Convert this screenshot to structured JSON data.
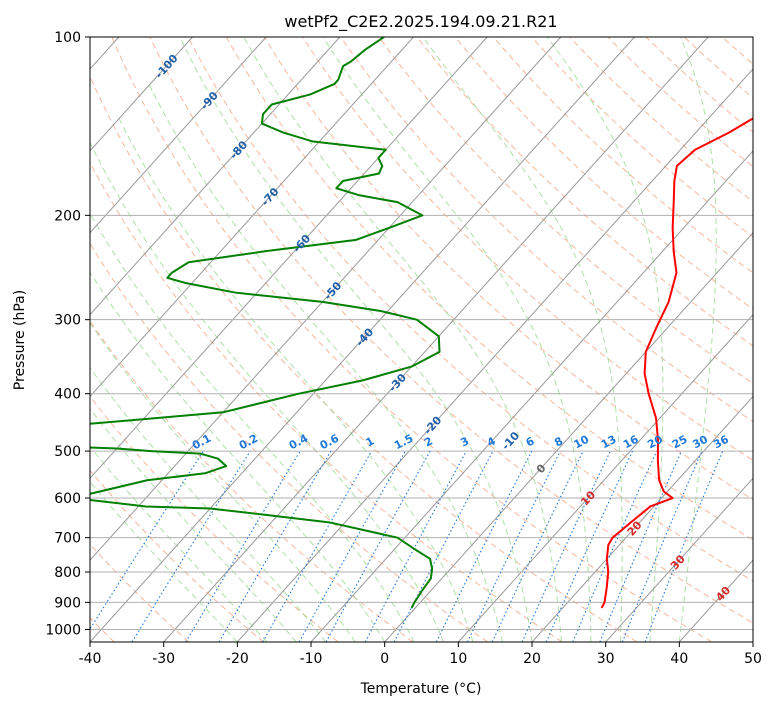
{
  "chart_data": {
    "type": "line",
    "subtype": "skew-t log-p diagram",
    "title": "wetPf2_C2E2.2025.194.09.21.R21",
    "xlabel": "Temperature (°C)",
    "ylabel": "Pressure (hPa)",
    "xlim": [
      -40,
      50
    ],
    "ylim": [
      1050,
      100
    ],
    "y_scale": "log",
    "grid": true,
    "x_ticks": [
      -40,
      -30,
      -20,
      -10,
      0,
      10,
      20,
      30,
      40,
      50
    ],
    "y_ticks": [
      100,
      200,
      300,
      400,
      500,
      600,
      700,
      800,
      900,
      1000
    ],
    "series": [
      {
        "color": "#ff0000",
        "pressure": [
          920,
          900,
          850,
          800,
          760,
          720,
          700,
          660,
          620,
          600,
          585,
          560,
          520,
          480,
          440,
          400,
          370,
          340,
          310,
          280,
          250,
          230,
          210,
          190,
          175,
          165,
          155,
          145,
          135,
          125,
          118,
          112,
          106,
          100
        ],
        "temperature": [
          25.3,
          25.0,
          23.5,
          21.8,
          20.0,
          18.5,
          18.2,
          18.8,
          19.5,
          21.5,
          19.5,
          17.5,
          15.0,
          12.5,
          9.5,
          5.5,
          2.5,
          0.0,
          -1.5,
          -3.0,
          -5.5,
          -8.5,
          -11.5,
          -14.5,
          -17.0,
          -18.5,
          -18.0,
          -15.5,
          -13.5,
          -12.5,
          -11.5,
          -11.5,
          -10.0,
          -8.5
        ]
      },
      {
        "color": "#008000",
        "pressure": [
          920,
          900,
          860,
          820,
          790,
          760,
          730,
          700,
          660,
          640,
          625,
          620,
          600,
          560,
          545,
          530,
          515,
          505,
          500,
          495,
          490,
          470,
          460,
          455,
          450,
          430,
          400,
          380,
          360,
          340,
          320,
          300,
          290,
          280,
          270,
          260,
          255,
          250,
          240,
          230,
          220,
          210,
          200,
          190,
          185,
          180,
          175,
          170,
          165,
          160,
          155,
          150,
          145,
          140,
          135,
          130,
          125,
          120,
          118,
          115,
          112,
          110,
          105,
          100
        ],
        "temperature": [
          -0.5,
          -0.8,
          -1.2,
          -1.5,
          -2.5,
          -4.0,
          -7.5,
          -11.0,
          -22.0,
          -32.0,
          -40.0,
          -49.0,
          -60.0,
          -52.0,
          -45.0,
          -43.0,
          -45.0,
          -48.0,
          -55.0,
          -60.0,
          -70.0,
          -70.0,
          -70.0,
          -70.0,
          -67.0,
          -50.0,
          -42.0,
          -35.0,
          -30.0,
          -28.0,
          -30.0,
          -35.0,
          -41.0,
          -50.0,
          -63.0,
          -71.0,
          -74.0,
          -74.0,
          -73.0,
          -64.0,
          -53.0,
          -50.0,
          -47.0,
          -52.0,
          -58.0,
          -62.0,
          -62.0,
          -58.0,
          -58.5,
          -60.0,
          -60.0,
          -71.0,
          -76.0,
          -80.0,
          -81.0,
          -81.0,
          -77.0,
          -75.0,
          -75.0,
          -75.5,
          -76.0,
          -75.5,
          -75.0,
          -74.0
        ]
      }
    ],
    "isotherm_labels": [
      "-100",
      "-90",
      "-80",
      "-70",
      "-60",
      "-50",
      "-40",
      "-30",
      "-20",
      "-10",
      "0",
      "10",
      "20",
      "30",
      "40"
    ],
    "mixing_ratio_labels": [
      "0.1",
      "0.2",
      "0.4",
      "0.6",
      "1",
      "1.5",
      "2",
      "3",
      "4",
      "6",
      "8",
      "10",
      "13",
      "16",
      "20",
      "25",
      "30",
      "36"
    ],
    "colors": {
      "temperature": "#ff0000",
      "dewpoint": "#008000",
      "dry_adiabat": "#f4a582",
      "moist_adiabat": "#a6dba0",
      "mixing_ratio": "#1f78d8",
      "isotherm": "#999999",
      "isotherm_label_cold": "#1f5fa8",
      "isotherm_label_warm": "#d62728"
    }
  }
}
